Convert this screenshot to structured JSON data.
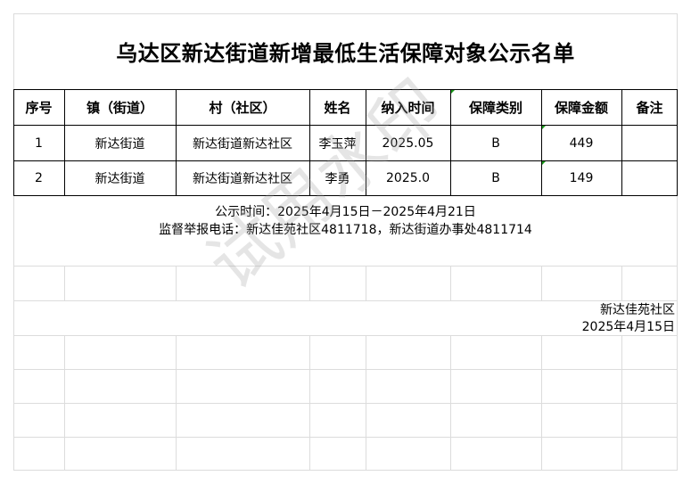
{
  "title": "乌达区新达街道新增最低生活保障对象公示名单",
  "table": {
    "headers": [
      "序号",
      "镇（街道）",
      "村（社区）",
      "姓名",
      "纳入时间",
      "保障类别",
      "保障金额",
      "备注"
    ],
    "rows": [
      [
        "1",
        "新达街道",
        "新达街道新达社区",
        "李玉萍",
        "2025.05",
        "B",
        "449",
        ""
      ],
      [
        "2",
        "新达街道",
        "新达街道新达社区",
        "李勇",
        "2025.0",
        "B",
        "149",
        ""
      ]
    ]
  },
  "notice": {
    "period": "公示时间：2025年4月15日－2025年4月21日",
    "phone": "监督举报电话：新达佳苑社区4811718，新达街道办事处4811714"
  },
  "signoff": {
    "org": "新达佳苑社区",
    "date": "2025年4月15日"
  },
  "watermark": "试用水印",
  "colors": {
    "cell_marker": "#1a9a1a",
    "gridline": "#dcdcdc"
  }
}
